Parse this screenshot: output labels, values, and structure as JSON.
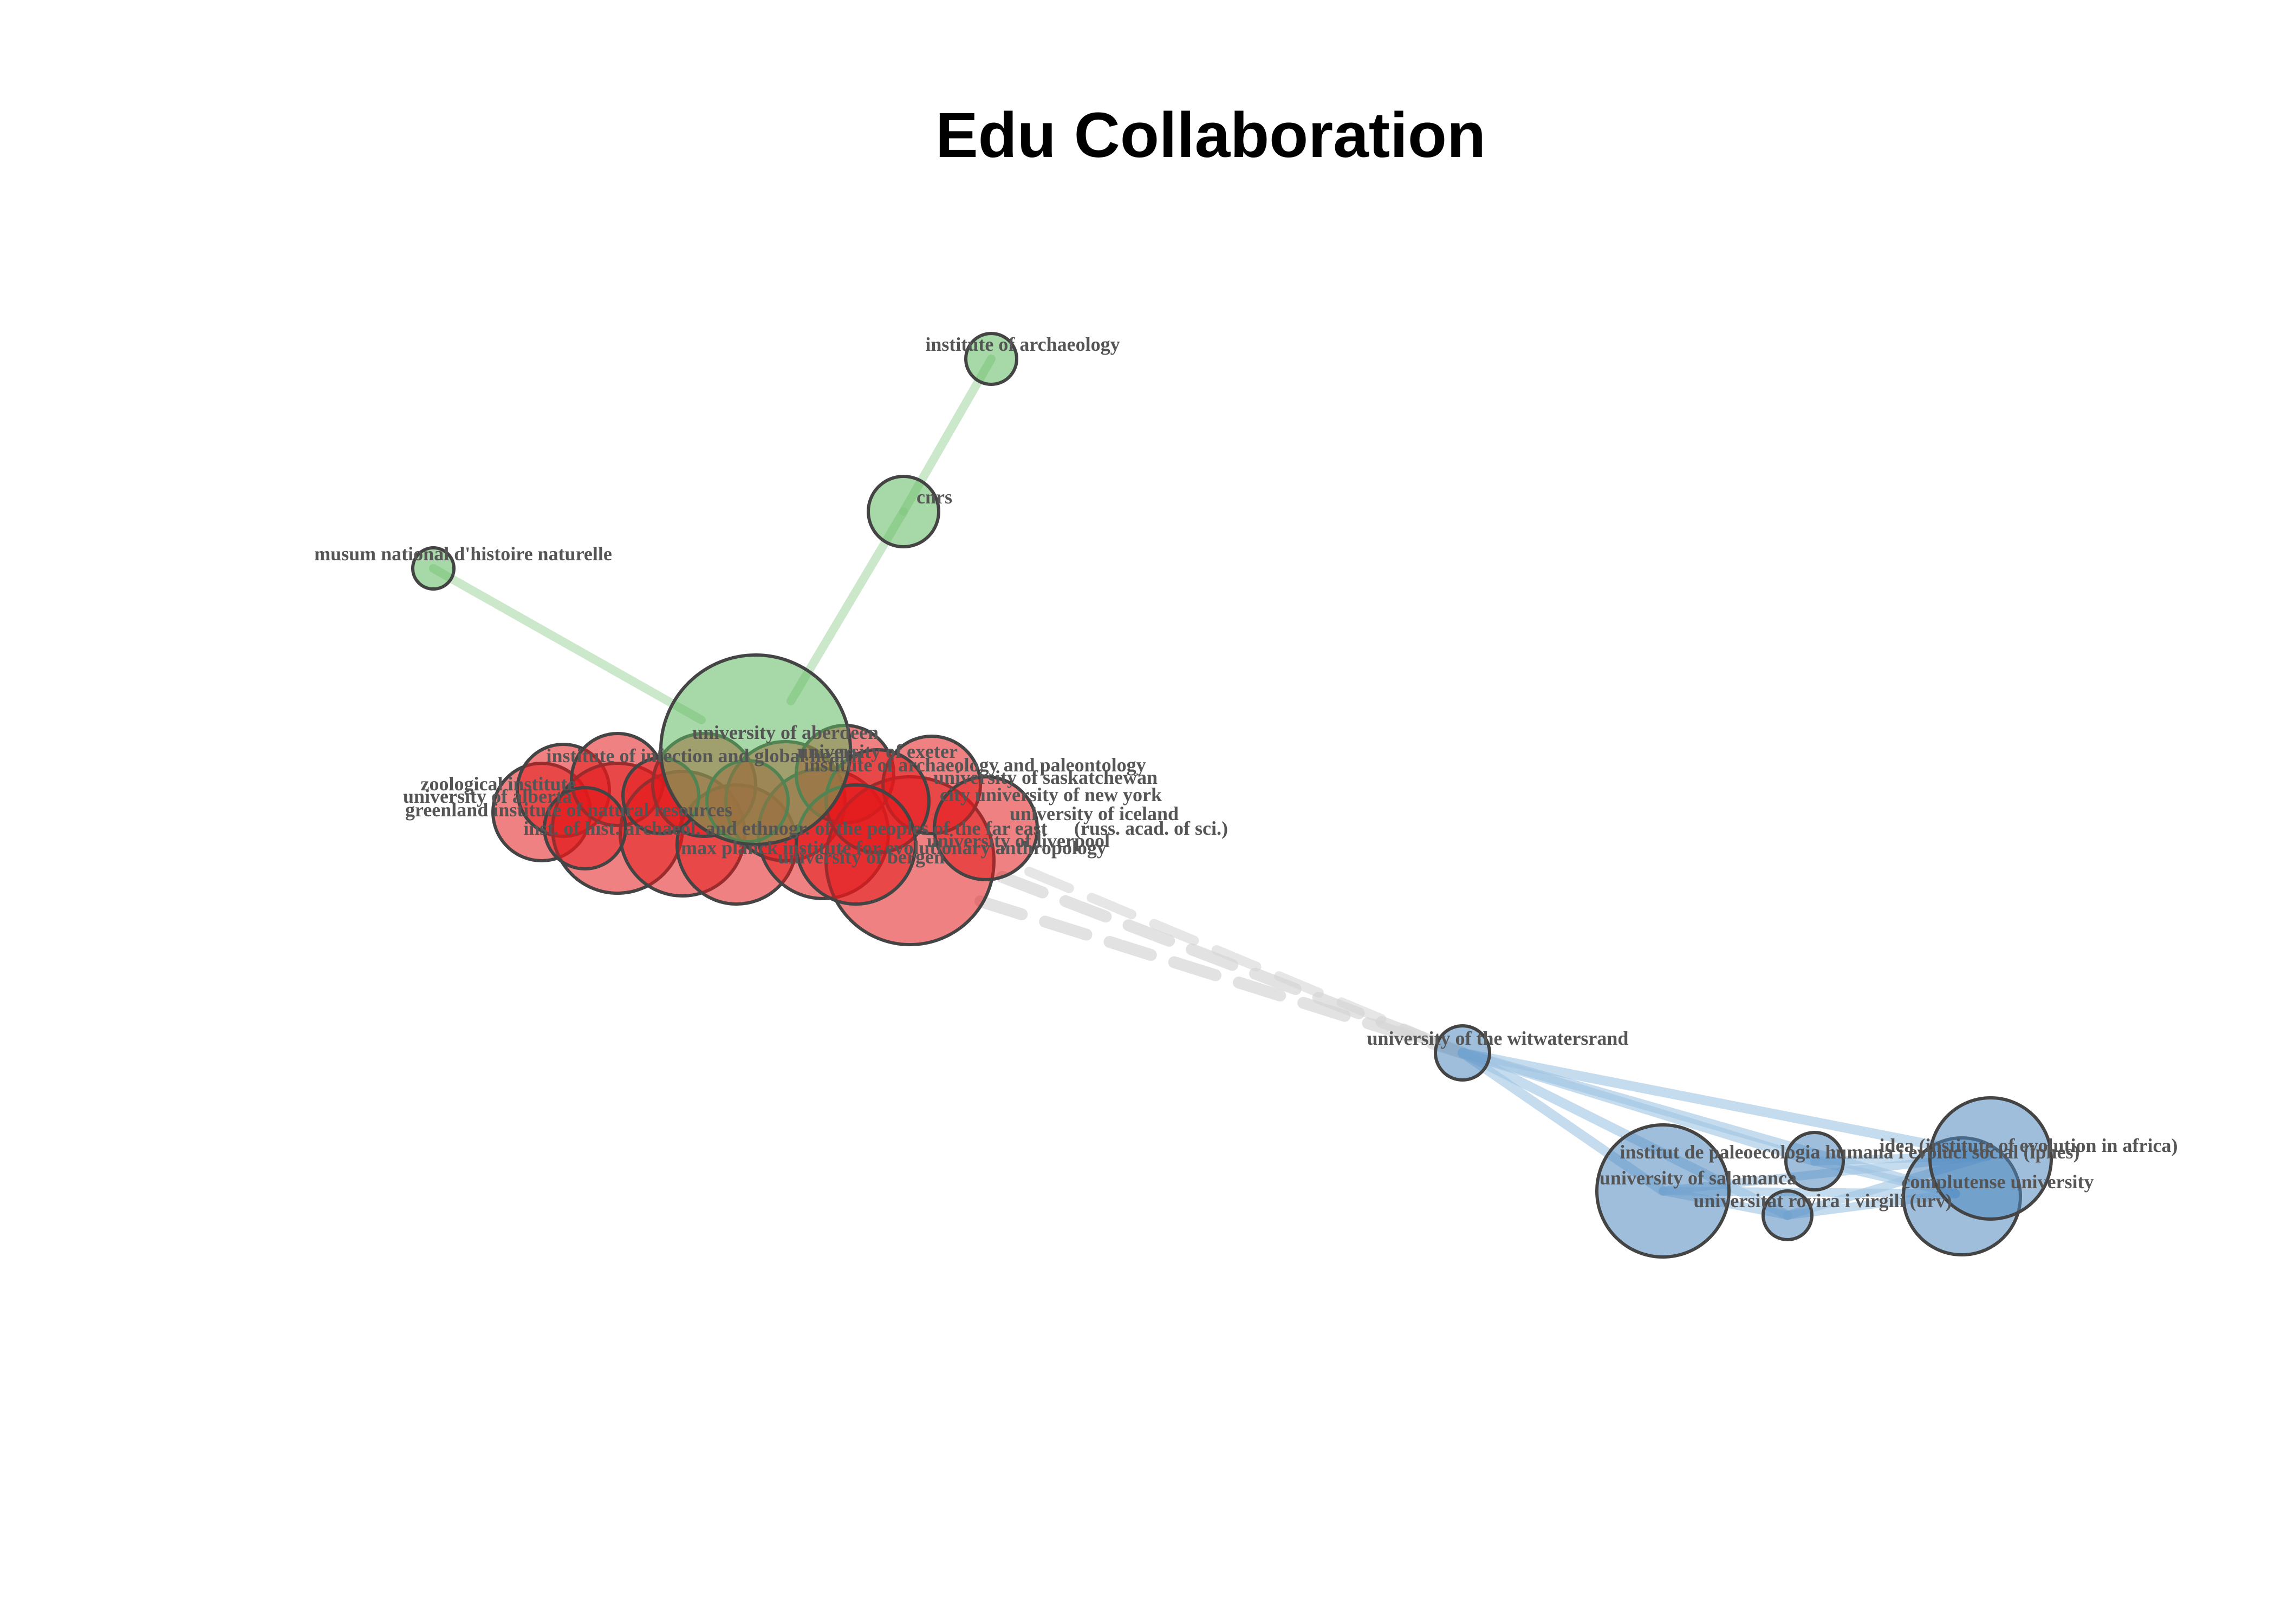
{
  "title": "Edu Collaboration",
  "colors": {
    "red": "#e41a1c",
    "green": "#5fb85f",
    "blue": "#4f88c0",
    "edge_green": "#a8d8a8",
    "edge_blue": "#9fc3e3",
    "edge_gray": "#d6d6d6"
  },
  "labels": {
    "institute_of_archaeology": "institute of archaeology",
    "cnrs": "cnrs",
    "musum": "musum national d'histoire naturelle",
    "university_of_aberdeen": "university of aberdeen",
    "institute_of_infection": "institute of infection and global health",
    "university_of_exeter": "university of exeter",
    "archaeology_and_paleontology": "institute of archaeology and paleontology",
    "zoological_institute": "zoological institute",
    "university_of_saskatchewan": "university of saskatchewan",
    "university_of_alberta": "university of alberta",
    "university_of_new_york": "city university of new york",
    "greenland_institute": "greenland institute of natural resources",
    "university_of_iceland": "university of iceland",
    "inst_of_hist_archaeol": "inst. of hist. archaeol. and ethnogr. of the peoples of the far east",
    "russ_acad": "(russ. acad. of sci.)",
    "university_of_liverpool": "university of liverpool",
    "evolutionary_anthropology": "max planck institute for evolutionary anthropology",
    "university_of_bergen": "university of bergen",
    "university_of_the_witwatersrand": "university of the witwatersrand",
    "idea": "idea (institute of evolution in africa)",
    "iphes": "institut de paleoecologia humana i evoluci social (iphes)",
    "university_of_salamanca": "university of salamanca",
    "complutense_university": "complutense university",
    "universitat_rovira_i_virgili": "universitat rovira i virgili (urv)"
  }
}
